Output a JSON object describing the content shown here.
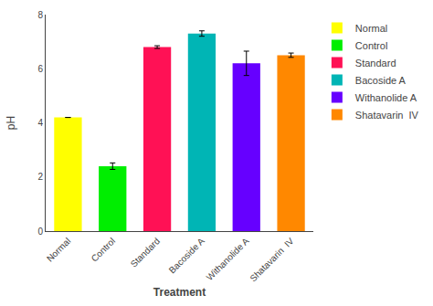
{
  "chart_data": {
    "type": "bar",
    "categories": [
      "Normal",
      "Control",
      "Standard",
      "Bacoside A",
      "Withanolide A",
      "Shatavarin  IV"
    ],
    "values": [
      4.2,
      2.4,
      6.8,
      7.3,
      6.2,
      6.5
    ],
    "errors": [
      0.0,
      0.12,
      0.05,
      0.1,
      0.45,
      0.08
    ],
    "colors": [
      "#FFFF00",
      "#00EE00",
      "#FF1155",
      "#00B5B5",
      "#6600FF",
      "#FF8800"
    ],
    "xlabel": "Treatment",
    "ylabel": "pH",
    "ylim": [
      0,
      8
    ],
    "yticks": [
      0,
      2,
      4,
      6,
      8
    ],
    "grid": false,
    "legend": "right"
  }
}
